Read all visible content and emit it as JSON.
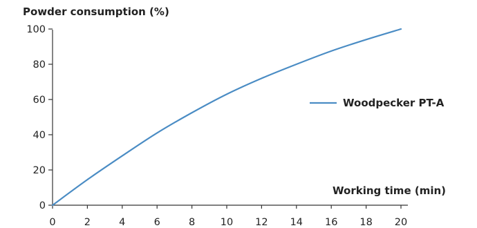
{
  "chart_data": {
    "type": "line",
    "ylabel": "Powder consumption (%)",
    "xlabel": "Working time (min)",
    "xlim": [
      0,
      20
    ],
    "ylim": [
      0,
      100
    ],
    "xticks": [
      "0",
      "2",
      "4",
      "6",
      "8",
      "10",
      "12",
      "14",
      "16",
      "18",
      "20"
    ],
    "yticks": [
      "0",
      "20",
      "40",
      "60",
      "80",
      "100"
    ],
    "grid": false,
    "legend_position": "right",
    "series": [
      {
        "name": "Woodpecker PT-A",
        "color": "#4a8cc4",
        "x": [
          0,
          2,
          4,
          6,
          8,
          10,
          12,
          14,
          16,
          18,
          20
        ],
        "y": [
          0,
          14.5,
          28,
          41,
          52.5,
          63,
          72,
          80,
          87.5,
          94,
          100
        ]
      }
    ]
  }
}
